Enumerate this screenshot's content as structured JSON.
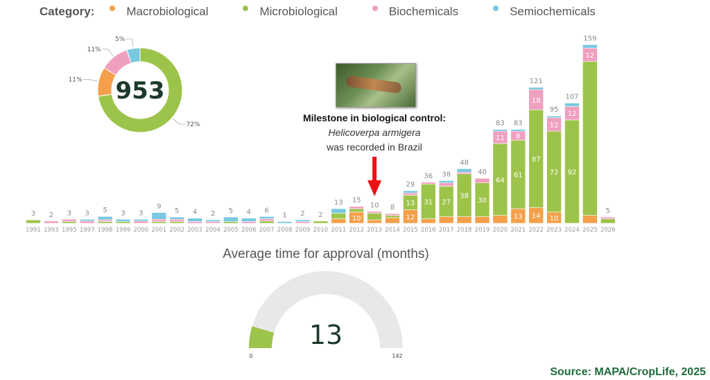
{
  "legend": {
    "title": "Category:",
    "items": [
      {
        "label": "Macrobiological",
        "color": "#f4a04a"
      },
      {
        "label": "Microbiological",
        "color": "#9dc44a"
      },
      {
        "label": "Biochemicals",
        "color": "#f0a0bf"
      },
      {
        "label": "Semiochemicals",
        "color": "#78c8e0"
      }
    ]
  },
  "donut": {
    "total": "953",
    "slices": [
      {
        "name": "Microbiological",
        "pct": 72,
        "label": "72%",
        "color": "#9dc44a"
      },
      {
        "name": "Macrobiological",
        "pct": 11,
        "label": "11%",
        "color": "#f4a04a"
      },
      {
        "name": "Biochemicals",
        "pct": 11,
        "label": "11%",
        "color": "#f0a0bf"
      },
      {
        "name": "Semiochemicals",
        "pct": 5,
        "label": "5%",
        "color": "#78c8e0"
      }
    ]
  },
  "annotation": {
    "line1": "Milestone in biological control:",
    "line2": "Helicoverpa armigera",
    "line3": "was recorded in Brazil",
    "year": "2013",
    "arrow_color": "#ee1111"
  },
  "chart_data": {
    "type": "bar",
    "stacked": true,
    "categories": [
      "1991",
      "1993",
      "1995",
      "1997",
      "1998",
      "1999",
      "2000",
      "2001",
      "2002",
      "2003",
      "2004",
      "2005",
      "2006",
      "2007",
      "2008",
      "2009",
      "2010",
      "2011",
      "2012",
      "2013",
      "2014",
      "2015",
      "2016",
      "2017",
      "2018",
      "2019",
      "2020",
      "2021",
      "2022",
      "2023",
      "2024",
      "2025",
      "2026"
    ],
    "totals": [
      3,
      2,
      3,
      3,
      5,
      3,
      3,
      9,
      5,
      4,
      2,
      5,
      4,
      6,
      1,
      2,
      2,
      13,
      15,
      10,
      8,
      29,
      36,
      38,
      48,
      40,
      83,
      83,
      121,
      95,
      107,
      159,
      5
    ],
    "series": [
      {
        "name": "Macrobiological",
        "color": "#f4a04a",
        "values": [
          0,
          0,
          0,
          0,
          0,
          0,
          0,
          0,
          0,
          0,
          0,
          0,
          0,
          0,
          0,
          0,
          0,
          4,
          10,
          3,
          5,
          12,
          4,
          6,
          6,
          6,
          7,
          13,
          14,
          10,
          0,
          7,
          0
        ]
      },
      {
        "name": "Microbiological",
        "color": "#9dc44a",
        "values": [
          3,
          0,
          1,
          0,
          1,
          1,
          0,
          1,
          1,
          0,
          0,
          1,
          0,
          2,
          0,
          0,
          2,
          5,
          3,
          6,
          2,
          13,
          31,
          27,
          38,
          30,
          64,
          61,
          87,
          72,
          92,
          137,
          4
        ]
      },
      {
        "name": "Biochemicals",
        "color": "#f0a0bf",
        "values": [
          0,
          2,
          2,
          2,
          1,
          0,
          2,
          2,
          2,
          1,
          1,
          0,
          1,
          2,
          0,
          1,
          0,
          0,
          2,
          1,
          1,
          2,
          1,
          3,
          1,
          4,
          11,
          8,
          18,
          12,
          12,
          12,
          1
        ]
      },
      {
        "name": "Semiochemicals",
        "color": "#78c8e0",
        "values": [
          0,
          0,
          0,
          1,
          3,
          2,
          1,
          6,
          2,
          3,
          1,
          4,
          3,
          2,
          1,
          1,
          0,
          4,
          0,
          0,
          0,
          2,
          0,
          2,
          3,
          0,
          1,
          1,
          2,
          1,
          3,
          3,
          0
        ]
      }
    ],
    "xlabel": "",
    "ylabel": "",
    "grid": false,
    "legend": "top"
  },
  "gauge": {
    "title": "Average time for approval (months)",
    "value": 13,
    "value_label": "13",
    "min": 0,
    "max": 142,
    "min_label": "0",
    "max_label": "142",
    "color": "#9dc44a",
    "track": "#e8e8e8"
  },
  "source": "Source: MAPA/CropLife, 2025"
}
